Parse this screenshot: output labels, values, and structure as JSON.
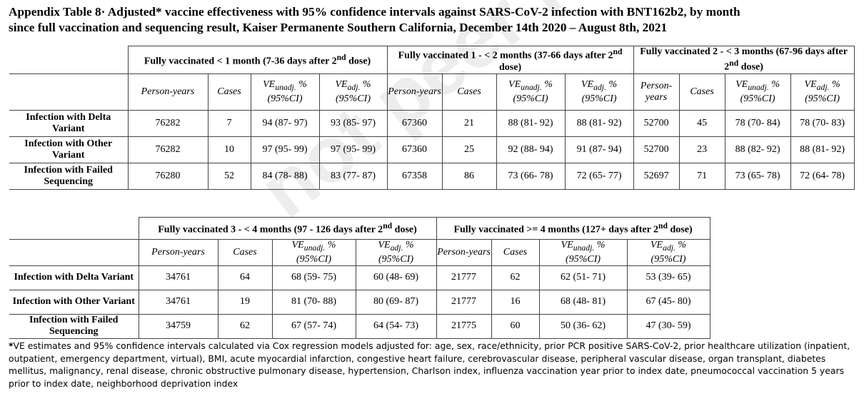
{
  "title": {
    "line1": "Appendix Table 8· Adjusted* vaccine effectiveness with 95% confidence intervals against SARS-CoV-2 infection with BNT162b2, by month",
    "line2": "since full vaccination and sequencing result, Kaiser Permanente Southern California, December 14th 2020 – August 8th, 2021"
  },
  "labels": {
    "person_years": "Person-years",
    "cases": "Cases",
    "ve": "VE",
    "unadj": "unadj.",
    "adj": "adj.",
    "pct": "%",
    "ci": "(95%CI)"
  },
  "table1": {
    "groups": [
      {
        "pre": "Fully vaccinated < 1 month (7-36 days after 2",
        "sup": "nd",
        "post": " dose)"
      },
      {
        "pre": "Fully vaccinated 1 - < 2 months (37-66 days after 2",
        "sup": "nd",
        "post": " dose)"
      },
      {
        "pre": "Fully vaccinated 2 - < 3 months (67-96 days after 2",
        "sup": "nd",
        "post": " dose)"
      }
    ],
    "rows": [
      {
        "label": "Infection with Delta Variant",
        "cells": [
          "76282",
          "7",
          "94 (87- 97)",
          "93 (85- 97)",
          "67360",
          "21",
          "88 (81- 92)",
          "88 (81- 92)",
          "52700",
          "45",
          "78 (70- 84)",
          "78 (70- 83)"
        ]
      },
      {
        "label": "Infection with Other Variant",
        "cells": [
          "76282",
          "10",
          "97 (95- 99)",
          "97 (95- 99)",
          "67360",
          "25",
          "92 (88- 94)",
          "91 (87- 94)",
          "52700",
          "23",
          "88 (82- 92)",
          "88 (81- 92)"
        ]
      },
      {
        "label": "Infection with Failed Sequencing",
        "cells": [
          "76280",
          "52",
          "84 (78- 88)",
          "83 (77- 87)",
          "67358",
          "86",
          "73 (66- 78)",
          "72 (65- 77)",
          "52697",
          "71",
          "73 (65- 78)",
          "72 (64- 78)"
        ]
      }
    ]
  },
  "table2": {
    "groups": [
      {
        "pre": "Fully vaccinated 3 - < 4 months (97 - 126 days after 2",
        "sup": "nd",
        "post": " dose)"
      },
      {
        "pre": "Fully vaccinated >= 4 months (127+ days after 2",
        "sup": "nd",
        "post": " dose)"
      }
    ],
    "rows": [
      {
        "label": "Infection with Delta Variant",
        "cells": [
          "34761",
          "64",
          "68 (59- 75)",
          "60 (48- 69)",
          "21777",
          "62",
          "62 (51- 71)",
          "53 (39- 65)"
        ]
      },
      {
        "label": "Infection with Other Variant",
        "cells": [
          "34761",
          "19",
          "81 (70- 88)",
          "80 (69- 87)",
          "21777",
          "16",
          "68 (48- 81)",
          "67 (45- 80)"
        ]
      },
      {
        "label": "Infection with Failed Sequencing",
        "cells": [
          "34759",
          "62",
          "67 (57- 74)",
          "64 (54- 73)",
          "21775",
          "60",
          "50 (36- 62)",
          "47 (30- 59)"
        ]
      }
    ]
  },
  "footnote": {
    "star": "*",
    "text": "VE estimates and 95% confidence intervals calculated via Cox regression models adjusted for: age, sex, race/ethnicity, prior PCR positive SARS-CoV-2, prior healthcare utilization (inpatient, outpatient, emergency department, virtual), BMI, acute myocardial infarction, congestive heart failure, cerebrovascular disease, peripheral vascular disease, organ transplant, diabetes mellitus, malignancy, renal disease, chronic obstructive pulmonary disease, hypertension, Charlson index, influenza vaccination year prior to index date, pneumococcal vaccination 5 years prior to index date, neighborhood deprivation index"
  },
  "watermark": "not peer reviewed"
}
